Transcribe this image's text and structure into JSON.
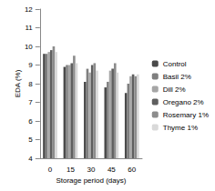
{
  "chart_data": {
    "type": "bar",
    "x_label": "Storage period (days)",
    "y_label": "EDA (%)",
    "categories": [
      "0",
      "15",
      "30",
      "45",
      "60"
    ],
    "series": [
      {
        "name": "Control",
        "color": "#4a4a4a",
        "values": [
          9.6,
          8.9,
          8.1,
          7.8,
          7.5
        ]
      },
      {
        "name": "Basil 2%",
        "color": "#7f7f7f",
        "values": [
          9.6,
          9.0,
          8.8,
          8.1,
          8.0
        ]
      },
      {
        "name": "Dill 2%",
        "color": "#a6a6a6",
        "values": [
          9.7,
          9.0,
          8.6,
          8.7,
          8.4
        ]
      },
      {
        "name": "Oregano 2%",
        "color": "#5f5f5f",
        "values": [
          9.8,
          9.1,
          9.0,
          8.8,
          8.5
        ]
      },
      {
        "name": "Rosemary 1%",
        "color": "#8c8c8c",
        "values": [
          10.0,
          9.5,
          9.1,
          9.1,
          8.4
        ]
      },
      {
        "name": "Thyme 1%",
        "color": "#d9d9d9",
        "values": [
          9.7,
          9.1,
          8.7,
          8.6,
          8.5
        ]
      }
    ],
    "ylim": [
      4,
      12
    ],
    "yticks": [
      4,
      5,
      6,
      7,
      8,
      9,
      10,
      11,
      12
    ],
    "grid": false,
    "legend": "right"
  }
}
